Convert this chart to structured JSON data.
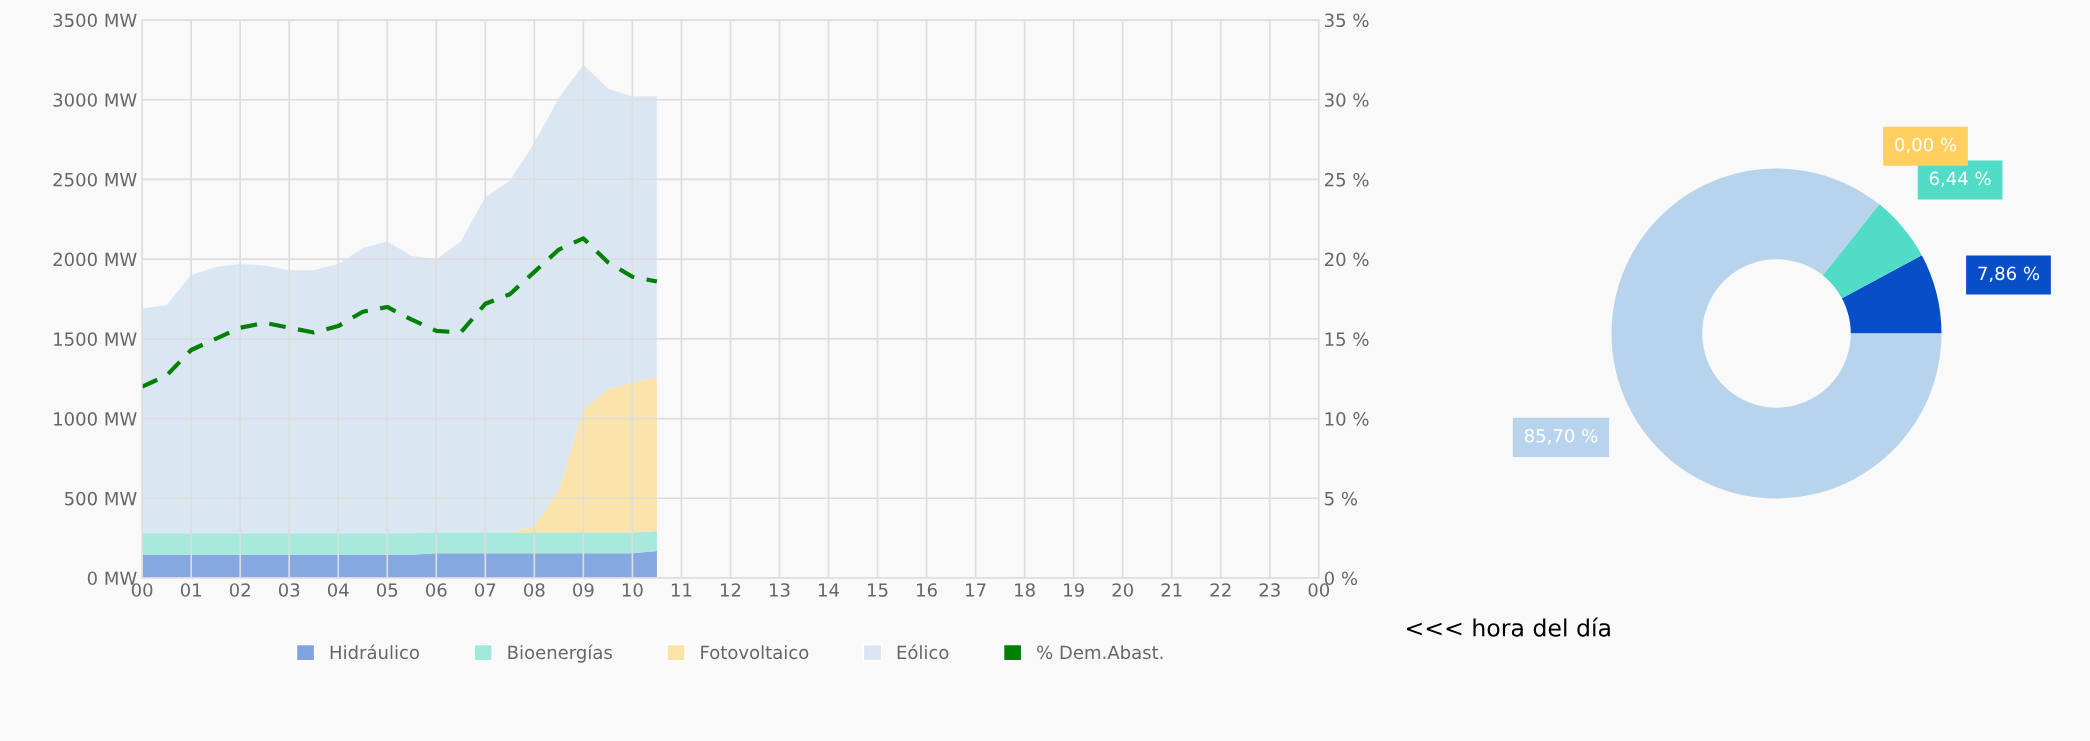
{
  "chart_data": [
    {
      "type": "area",
      "stacked": true,
      "x": [
        0,
        0.5,
        1,
        1.5,
        2,
        2.5,
        3,
        3.5,
        4,
        4.5,
        5,
        5.5,
        6,
        6.5,
        7,
        7.5,
        8,
        8.5,
        9,
        9.5,
        10,
        10.5
      ],
      "series": [
        {
          "name": "Hidráulico",
          "color": "#7fa3de",
          "values": [
            145,
            145,
            145,
            145,
            145,
            145,
            145,
            145,
            145,
            145,
            145,
            145,
            155,
            155,
            155,
            155,
            155,
            155,
            155,
            155,
            155,
            170
          ]
        },
        {
          "name": "Bioenergías",
          "color": "#a2e8db",
          "values": [
            135,
            135,
            135,
            135,
            135,
            135,
            135,
            135,
            135,
            135,
            135,
            135,
            130,
            130,
            130,
            130,
            130,
            130,
            130,
            130,
            130,
            125
          ]
        },
        {
          "name": "Fotovoltaico",
          "color": "#fbe3a8",
          "values": [
            0,
            0,
            0,
            0,
            0,
            0,
            0,
            0,
            0,
            0,
            0,
            0,
            0,
            0,
            0,
            0,
            40,
            265,
            770,
            900,
            940,
            965
          ]
        },
        {
          "name": "Eólico",
          "color": "#d8e6f2",
          "values": [
            1410,
            1430,
            1620,
            1670,
            1690,
            1680,
            1650,
            1650,
            1690,
            1790,
            1830,
            1740,
            1715,
            1825,
            2105,
            2205,
            2405,
            2460,
            2165,
            1885,
            1795,
            1760
          ]
        },
        {
          "name": "% Dem.Abast.",
          "type": "line",
          "axis": "y2",
          "line_style": "dashed",
          "color": "#008000",
          "values": [
            12.0,
            12.7,
            14.3,
            15.0,
            15.7,
            16.0,
            15.7,
            15.4,
            15.8,
            16.7,
            17.0,
            16.2,
            15.5,
            15.4,
            17.2,
            17.8,
            19.2,
            20.6,
            21.3,
            19.8,
            18.9,
            18.6
          ]
        }
      ],
      "xlim": [
        0,
        24
      ],
      "xticks": [
        {
          "value": 0,
          "label": "00"
        },
        {
          "value": 1,
          "label": "01"
        },
        {
          "value": 2,
          "label": "02"
        },
        {
          "value": 3,
          "label": "03"
        },
        {
          "value": 4,
          "label": "04"
        },
        {
          "value": 5,
          "label": "05"
        },
        {
          "value": 6,
          "label": "06"
        },
        {
          "value": 7,
          "label": "07"
        },
        {
          "value": 8,
          "label": "08"
        },
        {
          "value": 9,
          "label": "09"
        },
        {
          "value": 10,
          "label": "10"
        },
        {
          "value": 11,
          "label": "11"
        },
        {
          "value": 12,
          "label": "12"
        },
        {
          "value": 13,
          "label": "13"
        },
        {
          "value": 14,
          "label": "14"
        },
        {
          "value": 15,
          "label": "15"
        },
        {
          "value": 16,
          "label": "16"
        },
        {
          "value": 17,
          "label": "17"
        },
        {
          "value": 18,
          "label": "18"
        },
        {
          "value": 19,
          "label": "19"
        },
        {
          "value": 20,
          "label": "20"
        },
        {
          "value": 21,
          "label": "21"
        },
        {
          "value": 22,
          "label": "22"
        },
        {
          "value": 23,
          "label": "23"
        },
        {
          "value": 24,
          "label": "00"
        }
      ],
      "ylim": [
        0,
        3500
      ],
      "yticks": [
        {
          "value": 0,
          "label": "0 MW"
        },
        {
          "value": 500,
          "label": "500 MW"
        },
        {
          "value": 1000,
          "label": "1000 MW"
        },
        {
          "value": 1500,
          "label": "1500 MW"
        },
        {
          "value": 2000,
          "label": "2000 MW"
        },
        {
          "value": 2500,
          "label": "2500 MW"
        },
        {
          "value": 3000,
          "label": "3000 MW"
        },
        {
          "value": 3500,
          "label": "3500 MW"
        }
      ],
      "y2lim": [
        0,
        35
      ],
      "y2ticks": [
        {
          "value": 0,
          "label": "0 %"
        },
        {
          "value": 5,
          "label": "5 %"
        },
        {
          "value": 10,
          "label": "10 %"
        },
        {
          "value": 15,
          "label": "15 %"
        },
        {
          "value": 20,
          "label": "20 %"
        },
        {
          "value": 25,
          "label": "25 %"
        },
        {
          "value": 30,
          "label": "30 %"
        },
        {
          "value": 35,
          "label": "35 %"
        }
      ],
      "grid": true,
      "legend": "bottom",
      "annotations": [
        "<<< hora del día"
      ]
    },
    {
      "type": "donut",
      "categories": [
        null,
        null,
        null,
        null
      ],
      "values": [
        7.86,
        6.44,
        0.0,
        85.7
      ],
      "colors": [
        "#084fc7",
        "#50dcc6",
        "#ffd060",
        "#b8d4ec"
      ],
      "value_labels": [
        "7,86 %",
        "6,44 %",
        "0,00 %",
        "85,70 %"
      ]
    }
  ]
}
